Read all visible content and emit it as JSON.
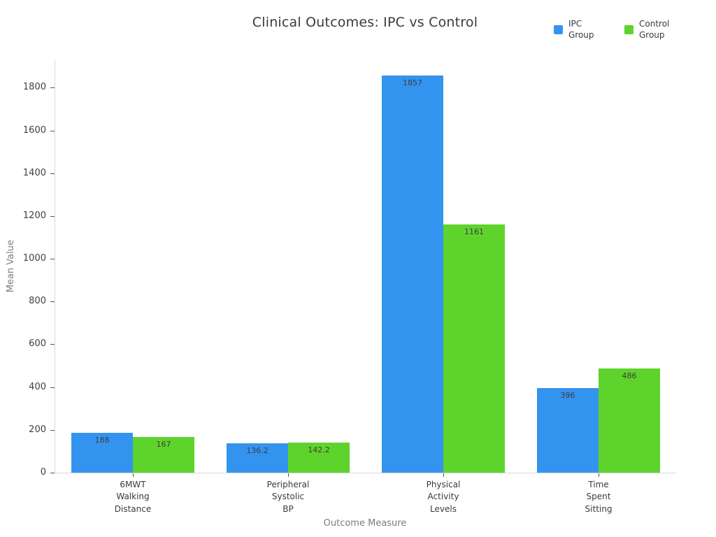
{
  "chart_data": {
    "type": "bar",
    "title": "Clinical Outcomes: IPC vs Control",
    "xlabel": "Outcome Measure",
    "ylabel": "Mean Value",
    "ylim": [
      0,
      1932
    ],
    "yticks": [
      0,
      200,
      400,
      600,
      800,
      1000,
      1200,
      1400,
      1600,
      1800
    ],
    "grid": false,
    "legend_position": "top-right",
    "categories": [
      [
        "6MWT",
        "Walking",
        "Distance"
      ],
      [
        "Peripheral",
        "Systolic",
        "BP"
      ],
      [
        "Physical",
        "Activity",
        "Levels"
      ],
      [
        "Time",
        "Spent",
        "Sitting"
      ]
    ],
    "series": [
      {
        "name": "IPC Group",
        "color": "#3394EF",
        "values": [
          188,
          136.2,
          1857,
          396
        ],
        "labels": [
          "188",
          "136.2",
          "1857",
          "396"
        ]
      },
      {
        "name": "Control Group",
        "color": "#5ED32C",
        "values": [
          167,
          142.2,
          1161,
          486
        ],
        "labels": [
          "167",
          "142.2",
          "1161",
          "486"
        ]
      }
    ]
  }
}
